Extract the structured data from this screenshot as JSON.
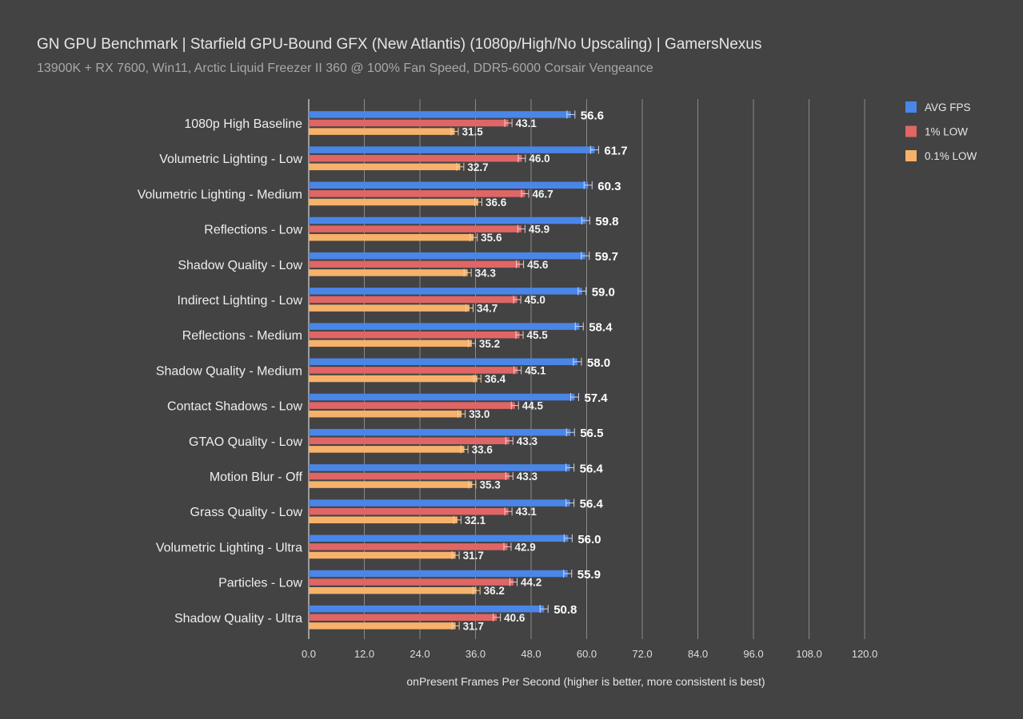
{
  "header": {
    "title": "GN GPU Benchmark | Starfield GPU-Bound GFX (New Atlantis) (1080p/High/No Upscaling) | GamersNexus",
    "subtitle": "13900K + RX 7600, Win11, Arctic Liquid Freezer II 360 @ 100% Fan Speed, DDR5-6000 Corsair Vengeance"
  },
  "chart_data": {
    "type": "bar",
    "orientation": "horizontal",
    "title": "GN GPU Benchmark | Starfield GPU-Bound GFX (New Atlantis) (1080p/High/No Upscaling) | GamersNexus",
    "subtitle": "13900K + RX 7600, Win11, Arctic Liquid Freezer II 360 @ 100% Fan Speed, DDR5-6000 Corsair Vengeance",
    "xlabel": "onPresent Frames Per Second (higher is better, more consistent is best)",
    "ylabel": "",
    "xlim": [
      0,
      120
    ],
    "xticks": [
      "0.0",
      "12.0",
      "24.0",
      "36.0",
      "48.0",
      "60.0",
      "72.0",
      "84.0",
      "96.0",
      "108.0",
      "120.0"
    ],
    "grid": "vertical",
    "legend_position": "top-right",
    "categories": [
      "1080p High Baseline",
      "Volumetric Lighting - Low",
      "Volumetric Lighting - Medium",
      "Reflections - Low",
      "Shadow Quality - Low",
      "Indirect Lighting - Low",
      "Reflections - Medium",
      "Shadow Quality - Medium",
      "Contact Shadows - Low",
      "GTAO Quality - Low",
      "Motion Blur - Off",
      "Grass Quality - Low",
      "Volumetric Lighting - Ultra",
      "Particles - Low",
      "Shadow Quality - Ultra"
    ],
    "series": [
      {
        "name": "AVG FPS",
        "color": "#4a86e8",
        "values": [
          56.6,
          61.7,
          60.3,
          59.8,
          59.7,
          59.0,
          58.4,
          58.0,
          57.4,
          56.5,
          56.4,
          56.4,
          56.0,
          55.9,
          50.8
        ],
        "labels": [
          "56.6",
          "61.7",
          "60.3",
          "59.8",
          "59.7",
          "59.0",
          "58.4",
          "58.0",
          "57.4",
          "56.5",
          "56.4",
          "56.4",
          "56.0",
          "55.9",
          "50.8"
        ]
      },
      {
        "name": "1% LOW",
        "color": "#e06666",
        "values": [
          43.1,
          46.0,
          46.7,
          45.9,
          45.6,
          45.0,
          45.5,
          45.1,
          44.5,
          43.3,
          43.3,
          43.1,
          42.9,
          44.2,
          40.6
        ],
        "labels": [
          "43.1",
          "46.0",
          "46.7",
          "45.9",
          "45.6",
          "45.0",
          "45.5",
          "45.1",
          "44.5",
          "43.3",
          "43.3",
          "43.1",
          "42.9",
          "44.2",
          "40.6"
        ]
      },
      {
        "name": "0.1% LOW",
        "color": "#f6b26b",
        "values": [
          31.5,
          32.7,
          36.6,
          35.6,
          34.3,
          34.7,
          35.2,
          36.4,
          33.0,
          33.6,
          35.3,
          32.1,
          31.7,
          36.2,
          31.7
        ],
        "labels": [
          "31.5",
          "32.7",
          "36.6",
          "35.6",
          "34.3",
          "34.7",
          "35.2",
          "36.4",
          "33.0",
          "33.6",
          "35.3",
          "32.1",
          "31.7",
          "36.2",
          "31.7"
        ]
      }
    ]
  }
}
